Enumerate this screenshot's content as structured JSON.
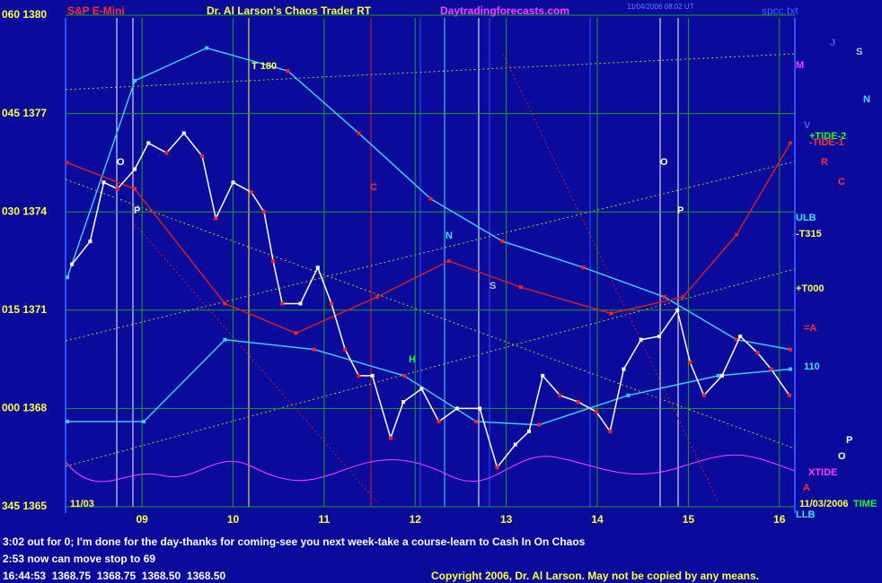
{
  "header": {
    "left": "S&P E-Mini",
    "title": "Dr. Al Larson's Chaos Trader RT",
    "site": "Daytradingforecasts.com",
    "timestamp": "11/04/2006 08:02 UT",
    "file": "spcc.txt"
  },
  "chart_data": {
    "type": "line",
    "xlim": [
      8.16,
      16.17
    ],
    "xticks": [
      {
        "value": 9,
        "label": "09"
      },
      10,
      11,
      12,
      13,
      14,
      15,
      16
    ],
    "ylim": [
      1365,
      1380
    ],
    "yticks": [
      {
        "value": 1365,
        "label": "345 1365"
      },
      {
        "value": 1368,
        "label": "000 1368"
      },
      {
        "value": 1371,
        "label": "015 1371"
      },
      {
        "value": 1374,
        "label": "030 1374"
      },
      {
        "value": 1377,
        "label": "045 1377"
      },
      {
        "value": 1380,
        "label": "060 1380"
      }
    ],
    "grid": true,
    "series": [
      {
        "color": "#40c8f0",
        "x": [
          8.18,
          8.92,
          9.71,
          10.6,
          11.38,
          12.17,
          12.96,
          13.85,
          14.74,
          15.53,
          16.12
        ],
        "values": [
          1372.0,
          1378.0,
          1379.0,
          1378.3,
          1376.4,
          1374.4,
          1373.1,
          1372.3,
          1371.4,
          1370.1,
          1369.8
        ]
      },
      {
        "color": "#40c8f0",
        "x": [
          8.18,
          9.02,
          9.91,
          10.89,
          11.88,
          12.67,
          13.36,
          14.34,
          15.33,
          16.12
        ],
        "values": [
          1367.6,
          1367.6,
          1370.1,
          1369.8,
          1369.0,
          1367.6,
          1367.5,
          1368.4,
          1369.0,
          1369.2
        ]
      },
      {
        "color": "#d02020",
        "x": [
          8.18,
          8.92,
          9.91,
          10.69,
          11.58,
          12.37,
          13.16,
          14.15,
          14.94,
          15.53,
          16.12
        ],
        "values": [
          1375.5,
          1374.7,
          1371.2,
          1370.3,
          1371.4,
          1372.5,
          1371.7,
          1370.9,
          1371.4,
          1373.3,
          1376.1
        ]
      },
      {
        "color": "#ffffff",
        "x": [
          8.23,
          8.43,
          8.58,
          8.73,
          8.92,
          9.07,
          9.27,
          9.46,
          9.66,
          9.81,
          10.0,
          10.2,
          10.34,
          10.44,
          10.54,
          10.74,
          10.93,
          11.08,
          11.23,
          11.38,
          11.53,
          11.73,
          11.87,
          12.07,
          12.26,
          12.46,
          12.71,
          12.9,
          13.1,
          13.25,
          13.4,
          13.59,
          13.79,
          13.99,
          14.14,
          14.29,
          14.48,
          14.68,
          14.88,
          15.02,
          15.17,
          15.37,
          15.57,
          15.76,
          15.91,
          16.11
        ],
        "values": [
          1372.4,
          1373.1,
          1374.9,
          1374.7,
          1375.3,
          1376.1,
          1375.8,
          1376.4,
          1375.7,
          1373.8,
          1374.9,
          1374.6,
          1374.0,
          1372.5,
          1371.2,
          1371.2,
          1372.3,
          1371.2,
          1369.8,
          1369.0,
          1369.0,
          1367.1,
          1368.2,
          1368.6,
          1367.6,
          1368.0,
          1368.0,
          1366.2,
          1366.9,
          1367.3,
          1369.0,
          1368.4,
          1368.2,
          1367.9,
          1367.3,
          1369.2,
          1370.1,
          1370.2,
          1371.0,
          1369.4,
          1368.4,
          1369.0,
          1370.2,
          1369.7,
          1369.2,
          1368.4
        ]
      }
    ],
    "annotations": [
      {
        "text": "T 180",
        "color": "#ffff40"
      },
      {
        "text": "M",
        "color": "#ff40ff"
      },
      {
        "text": "J",
        "color": "#4060ff"
      },
      {
        "text": "S",
        "color": "#c0c0c0"
      },
      {
        "text": "N",
        "color": "#40e0ff"
      },
      {
        "text": "V",
        "color": "#4060ff"
      },
      {
        "text": "+TIDE-2",
        "color": "#20ff20"
      },
      {
        "text": "-TIDE-1",
        "color": "#ff3030"
      },
      {
        "text": "R",
        "color": "#ff3030"
      },
      {
        "text": "C",
        "color": "#ff3030"
      },
      {
        "text": "ULB",
        "color": "#40e0ff"
      },
      {
        "text": "-T315",
        "color": "#ffff40"
      },
      {
        "text": "+T000",
        "color": "#ffff40"
      },
      {
        "text": "=A",
        "color": "#ff3030"
      },
      {
        "text": "110",
        "color": "#40e0ff"
      },
      {
        "text": "XTIDE",
        "color": "#ff40ff"
      },
      {
        "text": "A",
        "color": "#ff3030"
      },
      {
        "text": "11/03/2006",
        "color": "#ffff40"
      },
      {
        "text": "TIME",
        "color": "#20ff20"
      },
      {
        "text": "LLB",
        "color": "#40e0ff"
      },
      {
        "text": "P",
        "color": "#ffffff"
      },
      {
        "text": "O",
        "color": "#ffffff"
      },
      {
        "text": "C",
        "color": "#ff3030"
      },
      {
        "text": "N",
        "color": "#40e0ff"
      },
      {
        "text": "S",
        "color": "#c0c0c0"
      },
      {
        "text": "H",
        "color": "#20ff20"
      },
      {
        "text": "O",
        "color": "#ffffff"
      },
      {
        "text": "P",
        "color": "#ffffff"
      },
      {
        "text": "O",
        "color": "#ffffff"
      },
      {
        "text": "P",
        "color": "#ffffff"
      },
      {
        "text": "11/03",
        "color": "#ffff40"
      }
    ]
  },
  "footer": {
    "line1": "3:02 out for 0; I'm done for the day-thanks for coming-see you next week-take a course-learn to Cash In On Chaos",
    "line2": "2:53 now can move stop to 69",
    "quote": "16:44:53  1368.75  1368.75  1368.50  1368.50",
    "copyright": "Copyright 2006, Dr. Al Larson. May not be copied by any means."
  }
}
